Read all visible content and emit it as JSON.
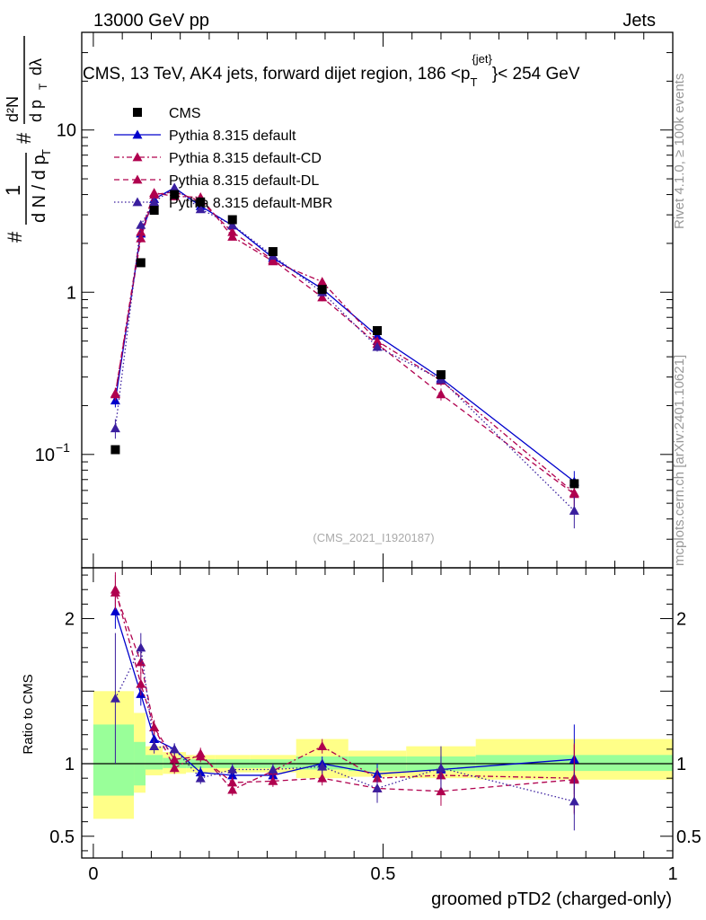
{
  "header": {
    "left": "13000 GeV pp",
    "right": "Jets"
  },
  "main_title": "CMS, 13 TeV, AK4 jets, forward dijet region, 186 <p",
  "title_sub": "T",
  "title_sup": "{jet}",
  "title_end": "}< 254 GeV",
  "ylabel_parts": {
    "one": "1",
    "hash": "#",
    "den": "d N / d p",
    "T": "T",
    "rhs_num": "d²N",
    "rhs_den": "d p",
    "rhs_dlambda": "dλ"
  },
  "side_right_top": "Rivet 4.1.0, ≥ 100k events",
  "side_right_bottom": "mcplots.cern.ch [arXiv:2401.10621]",
  "analysis_tag": "(CMS_2021_I1920187)",
  "ratio_ylabel": "Ratio to CMS",
  "xlabel": "groomed pTD2 (charged-only)",
  "colors": {
    "cms": "#000000",
    "default": "#0000cc",
    "cd": "#b0004e",
    "dl": "#b0004e",
    "mbr": "#3a1e9e",
    "band_inner": "#99ff99",
    "band_outer": "#ffff88"
  },
  "chart_data": {
    "type": "line",
    "x": [
      0.038,
      0.082,
      0.105,
      0.14,
      0.185,
      0.24,
      0.31,
      0.395,
      0.49,
      0.6,
      0.83
    ],
    "xlim": [
      -0.02,
      1.0
    ],
    "xticks": [
      0,
      0.5,
      1
    ],
    "ylim_main": [
      0.02,
      40
    ],
    "yscale": "log",
    "yticks_main": [
      {
        "v": 0.1,
        "label": "10",
        "sup": "−1"
      },
      {
        "v": 1,
        "label": "1"
      },
      {
        "v": 10,
        "label": "10"
      }
    ],
    "ylim_ratio": [
      0.35,
      2.35
    ],
    "yticks_ratio": [
      0.5,
      1,
      2
    ],
    "legend": [
      "CMS",
      "Pythia 8.315 default",
      "Pythia 8.315 default-CD",
      "Pythia 8.315 default-DL",
      "Pythia 8.315 default-MBR"
    ],
    "data_bins": [
      [
        0.0,
        0.07
      ],
      [
        0.07,
        0.09
      ],
      [
        0.09,
        0.12
      ],
      [
        0.12,
        0.16
      ],
      [
        0.16,
        0.21
      ],
      [
        0.21,
        0.27
      ],
      [
        0.27,
        0.35
      ],
      [
        0.35,
        0.44
      ],
      [
        0.44,
        0.54
      ],
      [
        0.54,
        0.66
      ],
      [
        0.66,
        1.0
      ]
    ],
    "band_inner": [
      [
        0.78,
        1.27
      ],
      [
        0.85,
        1.15
      ],
      [
        0.96,
        1.06
      ],
      [
        0.97,
        1.04
      ],
      [
        0.97,
        1.03
      ],
      [
        0.97,
        1.03
      ],
      [
        0.97,
        1.03
      ],
      [
        0.96,
        1.05
      ],
      [
        0.95,
        1.05
      ],
      [
        0.95,
        1.05
      ],
      [
        0.95,
        1.06
      ]
    ],
    "band_outer": [
      [
        0.62,
        1.5
      ],
      [
        0.8,
        1.35
      ],
      [
        0.92,
        1.12
      ],
      [
        0.93,
        1.08
      ],
      [
        0.94,
        1.06
      ],
      [
        0.94,
        1.06
      ],
      [
        0.94,
        1.06
      ],
      [
        0.9,
        1.17
      ],
      [
        0.91,
        1.09
      ],
      [
        0.9,
        1.12
      ],
      [
        0.89,
        1.17
      ]
    ],
    "cms_values": [
      0.107,
      1.52,
      3.2,
      4.0,
      3.6,
      2.8,
      1.78,
      1.04,
      0.58,
      0.31,
      0.066
    ],
    "series": [
      {
        "name": "Pythia 8.315 default",
        "style": "solid",
        "values": [
          0.215,
          2.3,
          3.75,
          4.4,
          3.4,
          2.58,
          1.63,
          1.05,
          0.54,
          0.295,
          0.068
        ],
        "errors": [
          0.02,
          0.12,
          0.15,
          0.15,
          0.12,
          0.09,
          0.06,
          0.05,
          0.03,
          0.02,
          0.011
        ],
        "ratio": [
          2.05,
          1.48,
          1.17,
          1.1,
          0.94,
          0.92,
          0.92,
          1.0,
          0.93,
          0.96,
          1.03
        ],
        "ratio_err": [
          0.12,
          0.08,
          0.05,
          0.04,
          0.04,
          0.04,
          0.04,
          0.05,
          0.07,
          0.1,
          0.24
        ]
      },
      {
        "name": "Pythia 8.315 default-CD",
        "style": "dashdot",
        "values": [
          0.235,
          2.35,
          4.1,
          3.9,
          3.85,
          2.2,
          1.55,
          1.16,
          0.5,
          0.285,
          0.058
        ],
        "errors": [
          0.02,
          0.12,
          0.15,
          0.15,
          0.12,
          0.09,
          0.06,
          0.06,
          0.03,
          0.02,
          0.01
        ],
        "ratio": [
          2.2,
          1.55,
          1.25,
          0.97,
          1.07,
          0.82,
          0.95,
          1.12,
          0.9,
          0.92,
          0.9
        ],
        "ratio_err": [
          0.12,
          0.08,
          0.05,
          0.04,
          0.04,
          0.04,
          0.04,
          0.05,
          0.07,
          0.1,
          0.24
        ]
      },
      {
        "name": "Pythia 8.315 default-DL",
        "style": "dashed",
        "values": [
          0.238,
          2.15,
          4.0,
          4.15,
          3.65,
          2.35,
          1.58,
          0.93,
          0.48,
          0.235,
          0.057
        ],
        "errors": [
          0.02,
          0.12,
          0.15,
          0.15,
          0.12,
          0.09,
          0.06,
          0.05,
          0.03,
          0.02,
          0.01
        ],
        "ratio": [
          2.18,
          1.7,
          1.25,
          1.03,
          1.05,
          0.87,
          0.88,
          0.9,
          0.83,
          0.81,
          0.89
        ],
        "ratio_err": [
          0.12,
          0.08,
          0.05,
          0.04,
          0.04,
          0.04,
          0.04,
          0.05,
          0.07,
          0.1,
          0.24
        ]
      },
      {
        "name": "Pythia 8.315 default-MBR",
        "style": "dotted",
        "values": [
          0.145,
          2.6,
          3.6,
          4.4,
          3.25,
          2.6,
          1.68,
          1.0,
          0.46,
          0.29,
          0.045
        ],
        "errors": [
          0.02,
          0.12,
          0.15,
          0.15,
          0.12,
          0.09,
          0.06,
          0.05,
          0.03,
          0.02,
          0.01
        ],
        "ratio": [
          1.45,
          1.8,
          1.12,
          1.1,
          0.9,
          0.96,
          0.96,
          0.98,
          0.83,
          0.97,
          0.74
        ],
        "ratio_err": [
          0.45,
          0.1,
          0.05,
          0.04,
          0.04,
          0.04,
          0.04,
          0.05,
          0.1,
          0.15,
          0.2
        ]
      }
    ]
  }
}
